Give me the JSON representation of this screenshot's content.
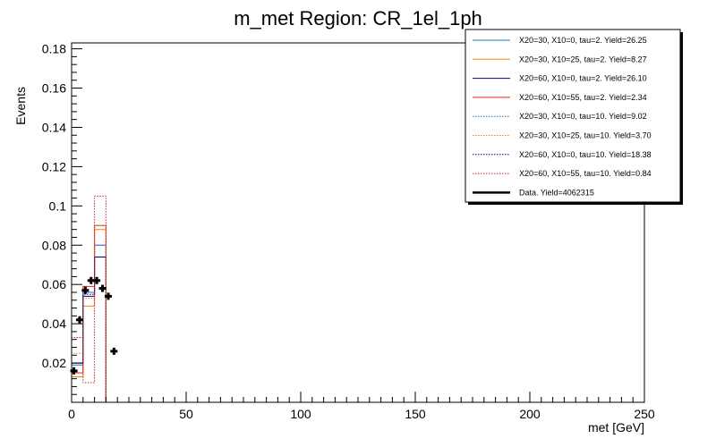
{
  "chart_data": {
    "type": "line",
    "title": "m_met Region: CR_1el_1ph",
    "xlabel": "met [GeV]",
    "ylabel": "Events",
    "xlim": [
      0,
      250
    ],
    "ylim": [
      0,
      0.183
    ],
    "bin_edges": [
      0,
      5,
      10,
      15,
      20,
      25
    ],
    "x_ticks": [
      0,
      50,
      100,
      150,
      200,
      250
    ],
    "x_tick_labels": [
      "0",
      "50",
      "100",
      "150",
      "200",
      "250"
    ],
    "y_ticks": [
      0.02,
      0.04,
      0.06,
      0.08,
      0.1,
      0.12,
      0.14,
      0.16,
      0.18
    ],
    "y_tick_labels": [
      "0.02",
      "0.04",
      "0.06",
      "0.08",
      "0.1",
      "0.12",
      "0.14",
      "0.16",
      "0.18"
    ],
    "grid": false,
    "legend_position": "top-right",
    "series": [
      {
        "name": "X20=30, X10=0, tau=2. Yield=26.25",
        "color": "#1f77b4",
        "style": "solid",
        "values": [
          0.019,
          0.056,
          0.08,
          0,
          0
        ]
      },
      {
        "name": "X20=30, X10=25, tau=2. Yield=8.27",
        "color": "#ff7f0e",
        "style": "solid",
        "values": [
          0.013,
          0.049,
          0.088,
          0,
          0
        ]
      },
      {
        "name": "X20=60, X10=0, tau=2. Yield=26.10",
        "color": "#000080",
        "style": "solid",
        "values": [
          0.02,
          0.054,
          0.074,
          0,
          0
        ]
      },
      {
        "name": "X20=60, X10=55, tau=2. Yield=2.34",
        "color": "#d62728",
        "style": "solid",
        "values": [
          0.015,
          0.059,
          0.09,
          0,
          0
        ]
      },
      {
        "name": "X20=30, X10=0, tau=10. Yield=9.02",
        "color": "#1f77b4",
        "style": "dotted",
        "values": [
          0.02,
          0.056,
          0.08,
          0,
          0
        ]
      },
      {
        "name": "X20=30, X10=25, tau=10. Yield=3.70",
        "color": "#ff7f0e",
        "style": "dotted",
        "values": [
          0.025,
          0.053,
          0.09,
          0,
          0
        ]
      },
      {
        "name": "X20=60, X10=0, tau=10. Yield=18.38",
        "color": "#000080",
        "style": "dotted",
        "values": [
          0.02,
          0.055,
          0.074,
          0,
          0
        ]
      },
      {
        "name": "X20=60, X10=55, tau=10. Yield=0.84",
        "color": "#d62728",
        "style": "dotted",
        "values": [
          0.033,
          0.01,
          0.105,
          0,
          0
        ]
      },
      {
        "name": "Data. Yield=4062315",
        "color": "#000000",
        "style": "points",
        "x": [
          1,
          3.5,
          6,
          8.5,
          11,
          13.5,
          16,
          18.5
        ],
        "values": [
          0.016,
          0.042,
          0.057,
          0.062,
          0.062,
          0.058,
          0.054,
          0.026
        ]
      }
    ]
  }
}
